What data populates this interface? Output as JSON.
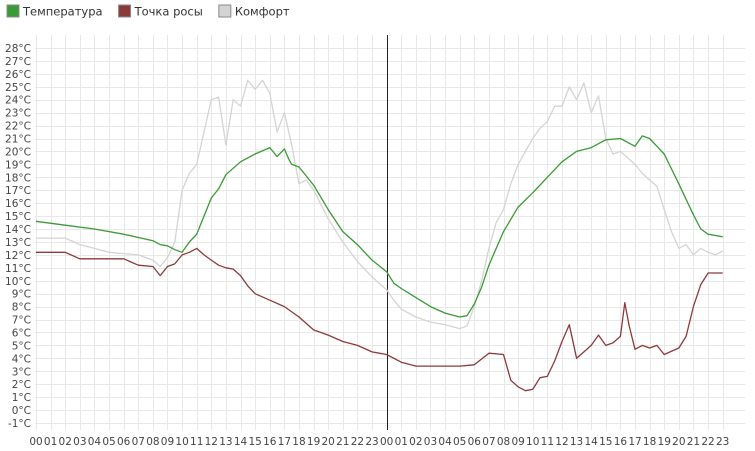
{
  "chart_data": {
    "type": "line",
    "legend_position": "top-left",
    "grid": true,
    "ylim": [
      -1,
      28
    ],
    "y_unit": "°C",
    "x_tick_labels": [
      "00",
      "01",
      "02",
      "03",
      "04",
      "05",
      "06",
      "07",
      "08",
      "09",
      "10",
      "11",
      "12",
      "13",
      "14",
      "15",
      "16",
      "17",
      "18",
      "19",
      "20",
      "21",
      "22",
      "23",
      "00",
      "01",
      "02",
      "03",
      "04",
      "05",
      "06",
      "07",
      "08",
      "09",
      "10",
      "11",
      "12",
      "13",
      "14",
      "15",
      "16",
      "17",
      "18",
      "19",
      "20",
      "21",
      "22",
      "23"
    ],
    "y_tick_labels": [
      "-1°C",
      "0°C",
      "1°C",
      "2°C",
      "3°C",
      "4°C",
      "5°C",
      "6°C",
      "7°C",
      "8°C",
      "9°C",
      "10°C",
      "11°C",
      "12°C",
      "13°C",
      "14°C",
      "15°C",
      "16°C",
      "17°C",
      "18°C",
      "19°C",
      "20°C",
      "21°C",
      "22°C",
      "23°C",
      "24°C",
      "25°C",
      "26°C",
      "27°C",
      "28°C"
    ],
    "day_divider_hour": 24,
    "series": [
      {
        "name": "Температура",
        "color": "#3a9a35",
        "x": [
          0,
          2,
          4,
          6,
          8,
          8.5,
          9,
          9.5,
          10,
          10.5,
          11,
          11.5,
          12,
          12.5,
          13,
          14,
          15,
          16,
          16.5,
          17,
          17.3,
          17.5,
          18,
          19,
          20,
          21,
          22,
          23,
          24,
          24.5,
          25,
          26,
          27,
          28,
          29,
          29.5,
          30,
          30.5,
          31,
          32,
          33,
          34,
          35,
          36,
          37,
          38,
          39,
          40,
          41,
          41.5,
          42,
          42.5,
          43,
          44,
          45,
          45.5,
          46,
          46.5,
          47
        ],
        "y": [
          14.6,
          14.3,
          14,
          13.6,
          13.1,
          12.8,
          12.7,
          12.4,
          12.2,
          13,
          13.6,
          15,
          16.4,
          17.1,
          18.2,
          19.2,
          19.8,
          20.3,
          19.6,
          20.2,
          19.4,
          19,
          18.8,
          17.4,
          15.5,
          13.8,
          12.8,
          11.6,
          10.7,
          9.8,
          9.4,
          8.7,
          8,
          7.5,
          7.2,
          7.3,
          8.2,
          9.5,
          11.2,
          13.8,
          15.7,
          16.8,
          18,
          19.2,
          20,
          20.3,
          20.9,
          21,
          20.4,
          21.2,
          21,
          20.4,
          19.8,
          17.5,
          15.1,
          14,
          13.6,
          13.5,
          13.4
        ]
      },
      {
        "name": "Точка росы",
        "color": "#8b3a3a",
        "x": [
          0,
          1,
          2,
          3,
          4,
          5,
          6,
          7,
          8,
          8.5,
          9,
          9.5,
          10,
          10.5,
          11,
          11.5,
          12,
          12.5,
          13,
          13.5,
          14,
          14.5,
          15,
          16,
          17,
          18,
          19,
          20,
          21,
          22,
          23,
          24,
          25,
          26,
          27,
          28,
          29,
          30,
          31,
          32,
          32.5,
          33,
          33.5,
          34,
          34.5,
          35,
          35.5,
          36,
          36.5,
          37,
          37.5,
          38,
          38.5,
          39,
          39.5,
          40,
          40.3,
          40.6,
          41,
          41.5,
          42,
          42.5,
          43,
          44,
          44.5,
          45,
          45.5,
          46,
          46.5,
          47
        ],
        "y": [
          12.2,
          12.2,
          12.2,
          11.7,
          11.7,
          11.7,
          11.7,
          11.2,
          11.1,
          10.4,
          11.1,
          11.3,
          12,
          12.2,
          12.5,
          12,
          11.6,
          11.2,
          11,
          10.9,
          10.4,
          9.6,
          9,
          8.5,
          8,
          7.2,
          6.2,
          5.8,
          5.3,
          5,
          4.5,
          4.3,
          3.7,
          3.4,
          3.4,
          3.4,
          3.4,
          3.5,
          4.4,
          4.3,
          2.3,
          1.8,
          1.5,
          1.6,
          2.5,
          2.6,
          3.8,
          5.3,
          6.6,
          4,
          4.5,
          5,
          5.8,
          5,
          5.2,
          5.7,
          8.3,
          6.5,
          4.7,
          5,
          4.8,
          5,
          4.3,
          4.8,
          5.7,
          8,
          9.7,
          10.6,
          10.6,
          10.6
        ]
      },
      {
        "name": "Комфорт",
        "color": "#d4d4d4",
        "x": [
          0,
          1,
          2,
          3,
          4,
          5,
          6,
          7,
          8,
          8.5,
          9,
          9.5,
          10,
          10.5,
          11,
          11.5,
          12,
          12.5,
          13,
          13.5,
          14,
          14.5,
          15,
          15.5,
          16,
          16.5,
          17,
          17.5,
          18,
          18.5,
          19,
          20,
          21,
          22,
          23,
          24,
          24.5,
          25,
          26,
          27,
          28,
          29,
          29.5,
          30,
          30.5,
          31,
          31.5,
          32,
          32.5,
          33,
          33.5,
          34,
          34.5,
          35,
          35.5,
          36,
          36.5,
          37,
          37.5,
          38,
          38.5,
          39,
          39.5,
          40,
          40.5,
          41,
          41.5,
          42,
          42.5,
          43,
          43.5,
          44,
          44.5,
          45,
          45.5,
          46,
          46.5,
          47
        ],
        "y": [
          13.3,
          13.3,
          13.3,
          12.8,
          12.5,
          12.2,
          12.1,
          12,
          11.6,
          11.1,
          11.8,
          13,
          17,
          18.3,
          19,
          21.5,
          24,
          24.2,
          20.5,
          24,
          23.5,
          25.5,
          24.8,
          25.5,
          24.5,
          21.5,
          23,
          20.5,
          17.5,
          17.8,
          17,
          14.8,
          13,
          11.5,
          10.3,
          9.3,
          8.5,
          7.8,
          7.2,
          6.8,
          6.6,
          6.3,
          6.5,
          8,
          10,
          12.5,
          14.5,
          15.5,
          17.5,
          19,
          20,
          21,
          21.8,
          22.3,
          23.5,
          23.5,
          25,
          24,
          25.3,
          23,
          24.3,
          21,
          19.8,
          20,
          19.5,
          19,
          18.3,
          17.8,
          17.3,
          15.5,
          13.8,
          12.5,
          12.8,
          12,
          12.5,
          12.2,
          12,
          12.3
        ]
      }
    ]
  }
}
